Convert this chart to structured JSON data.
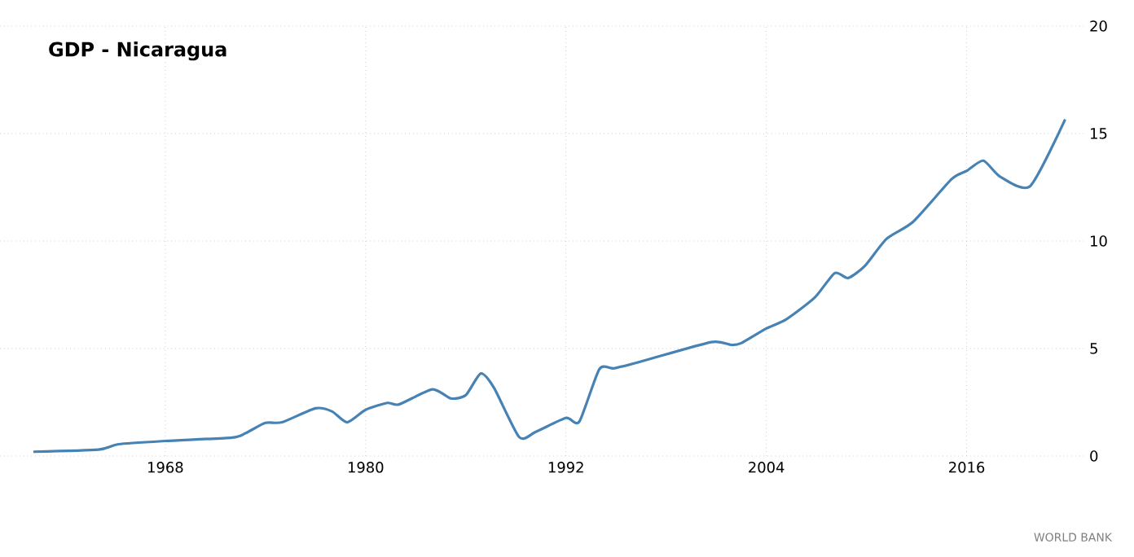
{
  "chart_data": {
    "type": "line",
    "title": "GDP - Nicaragua",
    "annotations": [
      "WORLD BANK"
    ],
    "x": [
      1960.1,
      1964,
      1965.2,
      1968,
      1972,
      1972.8,
      1974,
      1975,
      1977,
      1978,
      1978.9,
      1980,
      1981.3,
      1982,
      1984,
      1985.1,
      1986,
      1986.9,
      1987.7,
      1989.2,
      1990.2,
      1992,
      1992.8,
      1994,
      1994.9,
      1996.6,
      2000.7,
      2001.9,
      2002.5,
      2004,
      2005.2,
      2006.9,
      2008.1,
      2008.9,
      2009.9,
      2011.2,
      2012.8,
      2015.1,
      2016,
      2017,
      2018,
      2019.8,
      2021.9
    ],
    "series": [
      {
        "color": "#4682b4",
        "values": [
          0.2,
          0.3,
          0.55,
          0.7,
          0.86,
          1.06,
          1.54,
          1.57,
          2.22,
          2.07,
          1.57,
          2.15,
          2.47,
          2.4,
          3.1,
          2.68,
          2.83,
          3.84,
          3.16,
          0.88,
          1.13,
          1.77,
          1.6,
          4.04,
          4.08,
          4.42,
          5.3,
          5.17,
          5.25,
          5.93,
          6.36,
          7.37,
          8.51,
          8.28,
          8.84,
          10.1,
          10.9,
          12.88,
          13.26,
          13.74,
          13.0,
          12.55,
          15.66
        ]
      }
    ],
    "xlim": [
      1958.1,
      2023
    ],
    "ylim": [
      0,
      20
    ],
    "xticks": [
      1968,
      1980,
      1992,
      2004,
      2016
    ],
    "yticks": [
      0,
      5,
      10,
      15,
      20
    ],
    "grid": true
  }
}
